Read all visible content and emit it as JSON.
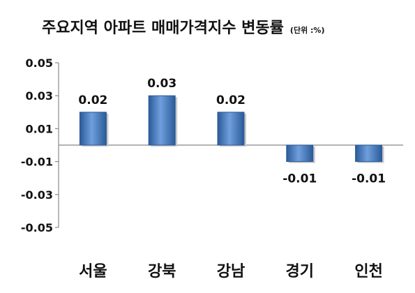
{
  "header": {
    "title": "주요지역 아파트 매매가격지수 변동률",
    "unit": "(단위 :%)"
  },
  "chart_data": {
    "type": "bar",
    "title": "주요지역 아파트 매매가격지수 변동률",
    "unit": "(단위 :%)",
    "categories": [
      "서울",
      "강북",
      "강남",
      "경기",
      "인천"
    ],
    "values": [
      0.02,
      0.03,
      0.02,
      -0.01,
      -0.01
    ],
    "data_labels": [
      "0.02",
      "0.03",
      "0.02",
      "-0.01",
      "-0.01"
    ],
    "y_ticks": [
      0.05,
      0.03,
      0.01,
      -0.01,
      -0.03,
      -0.05
    ],
    "y_tick_labels": [
      "0.05",
      "0.03",
      "0.01",
      "-0.01",
      "-0.03",
      "-0.05"
    ],
    "ylim": [
      -0.05,
      0.05
    ],
    "grid": false,
    "legend": "none",
    "bar_color": "#4a7ec0",
    "bar_color_dark": "#2b5a98",
    "bar_color_light": "#6f9fdc"
  }
}
